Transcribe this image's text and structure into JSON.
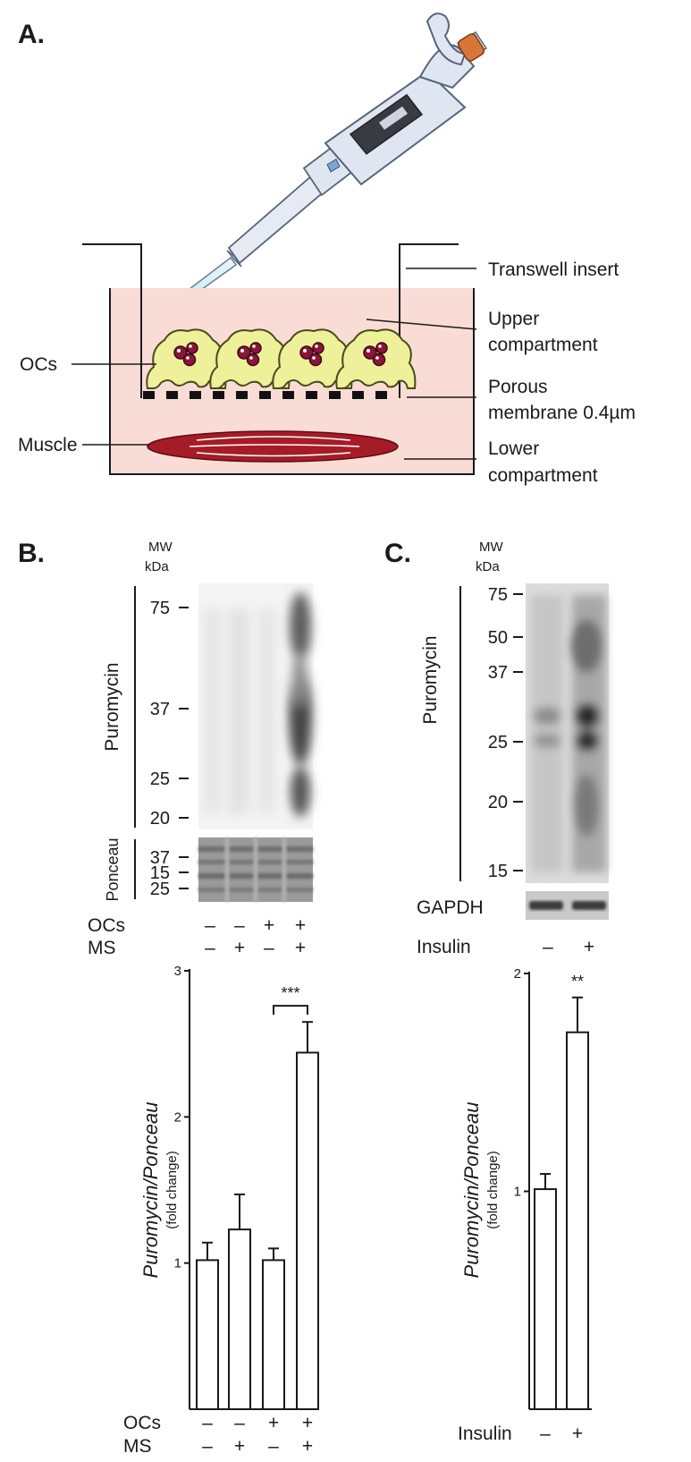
{
  "panel_a": {
    "label": "A.",
    "callouts": {
      "transwell": "Transwell insert",
      "upper_1": "Upper",
      "upper_2": "compartment",
      "porous_1": "Porous",
      "porous_2": "membrane 0.4µm",
      "lower_1": "Lower",
      "lower_2": "compartment",
      "ocs": "OCs",
      "muscle": "Muscle"
    },
    "colors": {
      "medium": "#fadcd6",
      "cell": "#eef09a",
      "muscle": "#a51c26",
      "nucleus": "#8a1538",
      "pipette": "#dfe6f2"
    }
  },
  "panel_b": {
    "label": "B.",
    "mw_header_1": "MW",
    "mw_header_2": "kDa",
    "blot_label": "Puromycin",
    "mw_markers": [
      "75",
      "37",
      "25",
      "20",
      "15"
    ],
    "ponceau_label": "Ponceau",
    "ponceau_markers": [
      "37",
      "25"
    ],
    "condition_rows": [
      {
        "label": "OCs",
        "signs": [
          "–",
          "–",
          "+",
          "+"
        ]
      },
      {
        "label": "MS",
        "signs": [
          "–",
          "+",
          "–",
          "+"
        ]
      }
    ]
  },
  "panel_c": {
    "label": "C.",
    "mw_header_1": "MW",
    "mw_header_2": "kDa",
    "blot_label": "Puromycin",
    "mw_markers": [
      "75",
      "50",
      "37",
      "25",
      "20",
      "15"
    ],
    "loading_label": "GAPDH",
    "condition_rows": [
      {
        "label": "Insulin",
        "signs": [
          "–",
          "+"
        ]
      }
    ]
  },
  "chart_data": [
    {
      "type": "bar",
      "ylabel_1": "Puromycin/Ponceau",
      "ylabel_2": "(fold change)",
      "ylim": [
        0,
        3
      ],
      "yticks": [
        "1",
        "2",
        "3"
      ],
      "values": [
        1.02,
        1.23,
        1.02,
        2.44
      ],
      "errors": [
        0.12,
        0.24,
        0.08,
        0.21
      ],
      "significance": {
        "text": "***",
        "between": [
          2,
          3
        ]
      },
      "condition_rows": [
        {
          "label": "OCs",
          "signs": [
            "–",
            "–",
            "+",
            "+"
          ]
        },
        {
          "label": "MS",
          "signs": [
            "–",
            "+",
            "–",
            "+"
          ]
        }
      ]
    },
    {
      "type": "bar",
      "ylabel_1": "Puromycin/Ponceau",
      "ylabel_2": "(fold change)",
      "ylim": [
        0,
        2
      ],
      "yticks": [
        "1",
        "2"
      ],
      "values": [
        1.01,
        1.73
      ],
      "errors": [
        0.07,
        0.16
      ],
      "significance": {
        "text": "**",
        "between": [
          1,
          1
        ]
      },
      "condition_rows": [
        {
          "label": "Insulin",
          "signs": [
            "–",
            "+"
          ]
        }
      ]
    }
  ]
}
